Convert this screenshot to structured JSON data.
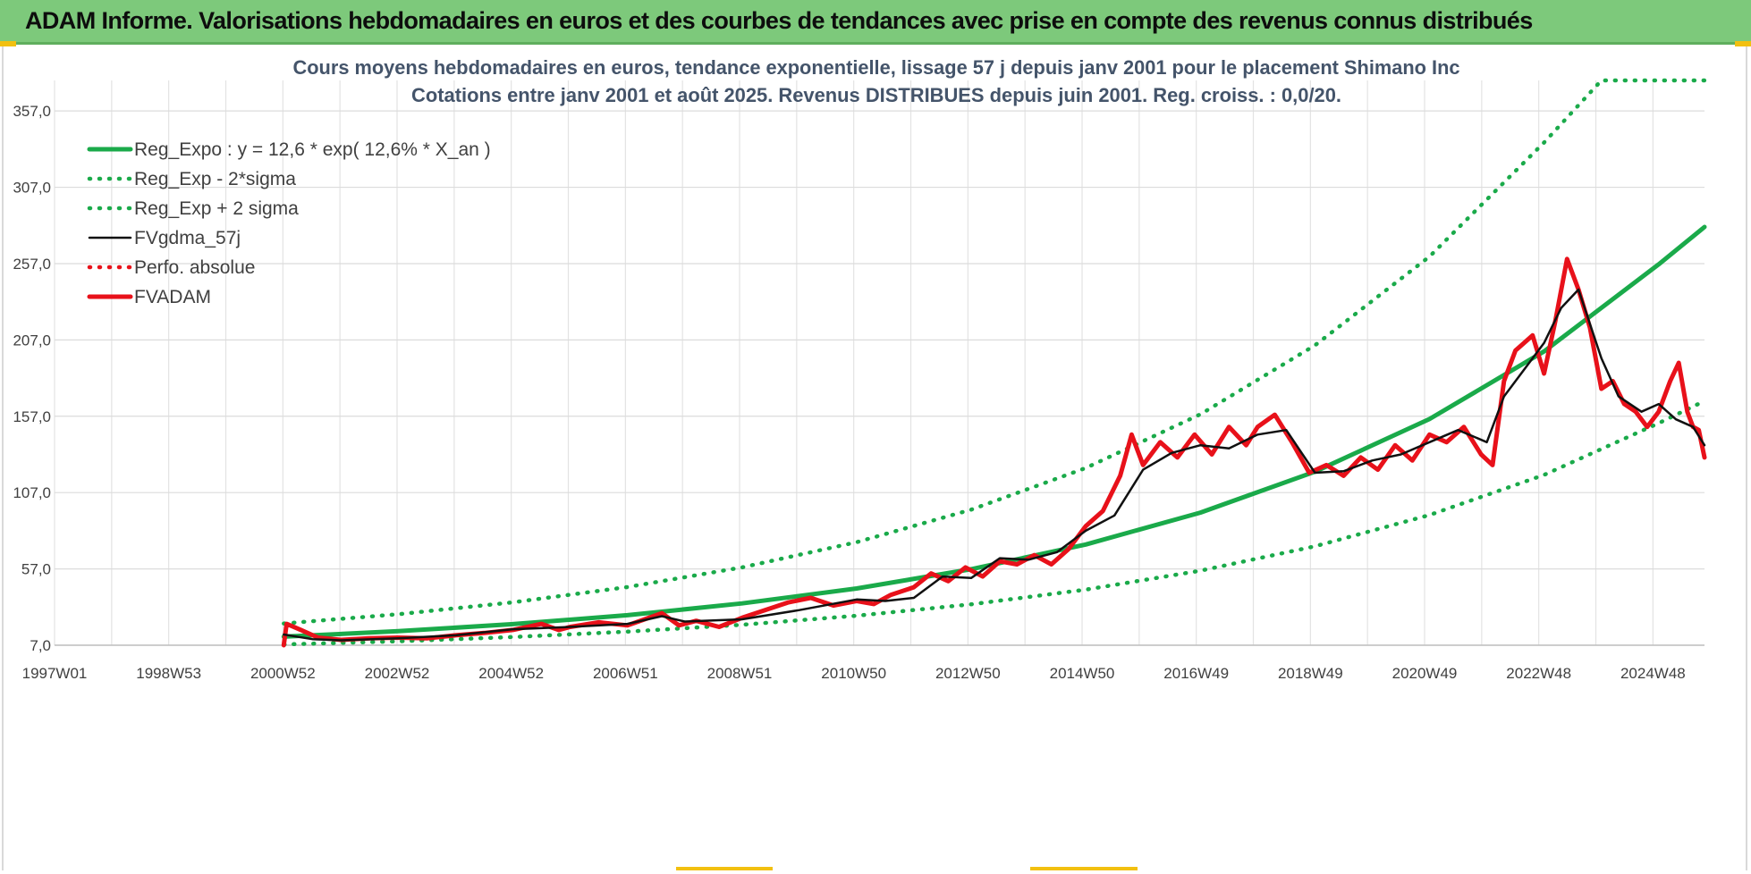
{
  "banner": {
    "title": "ADAM Informe. Valorisations hebdomadaires en euros et des courbes de tendances avec prise en compte des revenus connus distribués"
  },
  "colors": {
    "banner_bg": "#7dc97b",
    "accent": "#f2c010",
    "reg_green": "#1aaa4a",
    "fv_black": "#111111",
    "adam_red": "#e8111a"
  },
  "chart_data": {
    "type": "line",
    "title": "Cours moyens hebdomadaires en euros, tendance exponentielle, lissage 57 j depuis janv 2001 pour le placement Shimano Inc",
    "subtitle": "Cotations entre janv 2001 et août 2025. Revenus DISTRIBUES depuis juin 2001. Reg. croiss. : 0,0/20.",
    "xlabel": "",
    "ylabel": "",
    "x_ticks": [
      "1997W01",
      "1998W53",
      "2000W52",
      "2002W52",
      "2004W52",
      "2006W51",
      "2008W51",
      "2010W50",
      "2012W50",
      "2014W50",
      "2016W49",
      "2018W49",
      "2020W49",
      "2022W48",
      "2024W48"
    ],
    "x_range": [
      1997.0,
      2025.8
    ],
    "y_ticks": [
      "7,0",
      "57,0",
      "107,0",
      "157,0",
      "207,0",
      "257,0",
      "307,0",
      "357,0"
    ],
    "ylim": [
      7,
      377
    ],
    "grid": true,
    "legend_position": "top-left",
    "series": [
      {
        "name": "Reg_Expo : y = 12,6 * exp( 12,6% *  X_an )",
        "style": "solid-thick",
        "color": "#1aaa4a",
        "points": [
          [
            2001.0,
            12.6
          ],
          [
            2003.0,
            16.2
          ],
          [
            2005.0,
            20.8
          ],
          [
            2007.0,
            26.7
          ],
          [
            2009.0,
            34.4
          ],
          [
            2011.0,
            44.2
          ],
          [
            2013.0,
            56.8
          ],
          [
            2015.0,
            73.0
          ],
          [
            2017.0,
            93.9
          ],
          [
            2019.0,
            120.7
          ],
          [
            2021.0,
            155.2
          ],
          [
            2023.0,
            199.5
          ],
          [
            2025.0,
            256.5
          ],
          [
            2025.8,
            281.0
          ]
        ]
      },
      {
        "name": "Reg_Exp - 2*sigma",
        "style": "dotted",
        "color": "#1aaa4a",
        "points": [
          [
            2001.0,
            7.5
          ],
          [
            2003.0,
            9.6
          ],
          [
            2005.0,
            12.4
          ],
          [
            2007.0,
            15.9
          ],
          [
            2009.0,
            20.4
          ],
          [
            2011.0,
            26.3
          ],
          [
            2013.0,
            33.8
          ],
          [
            2015.0,
            43.4
          ],
          [
            2017.0,
            55.8
          ],
          [
            2019.0,
            71.8
          ],
          [
            2021.0,
            92.3
          ],
          [
            2023.0,
            118.6
          ],
          [
            2025.0,
            152.5
          ],
          [
            2025.8,
            167.0
          ]
        ]
      },
      {
        "name": "Reg_Exp + 2 sigma",
        "style": "dotted",
        "color": "#1aaa4a",
        "points": [
          [
            2001.0,
            21.2
          ],
          [
            2003.0,
            27.3
          ],
          [
            2005.0,
            35.1
          ],
          [
            2007.0,
            45.1
          ],
          [
            2009.0,
            58.0
          ],
          [
            2011.0,
            74.5
          ],
          [
            2013.0,
            95.8
          ],
          [
            2015.0,
            123.1
          ],
          [
            2017.0,
            158.3
          ],
          [
            2019.0,
            203.5
          ],
          [
            2021.0,
            261.6
          ],
          [
            2023.0,
            336.3
          ],
          [
            2024.0,
            377.0
          ],
          [
            2025.8,
            377.0
          ]
        ]
      },
      {
        "name": "FVgdma_57j",
        "style": "solid",
        "color": "#111111",
        "points": [
          [
            2001.0,
            14.0
          ],
          [
            2001.5,
            11.0
          ],
          [
            2002.0,
            10.2
          ],
          [
            2003.0,
            11.5
          ],
          [
            2004.0,
            13.5
          ],
          [
            2005.0,
            17.5
          ],
          [
            2006.0,
            19.0
          ],
          [
            2007.0,
            21.0
          ],
          [
            2007.6,
            26.0
          ],
          [
            2008.0,
            22.5
          ],
          [
            2009.0,
            24.0
          ],
          [
            2010.0,
            30.0
          ],
          [
            2011.0,
            37.0
          ],
          [
            2011.5,
            36.0
          ],
          [
            2012.0,
            38.0
          ],
          [
            2012.5,
            52.0
          ],
          [
            2013.0,
            51.0
          ],
          [
            2013.5,
            64.0
          ],
          [
            2014.0,
            63.0
          ],
          [
            2014.5,
            68.0
          ],
          [
            2015.0,
            82.0
          ],
          [
            2015.5,
            92.0
          ],
          [
            2016.0,
            122.0
          ],
          [
            2016.5,
            133.0
          ],
          [
            2017.0,
            138.0
          ],
          [
            2017.5,
            136.0
          ],
          [
            2018.0,
            145.0
          ],
          [
            2018.5,
            148.0
          ],
          [
            2019.0,
            120.0
          ],
          [
            2019.5,
            121.0
          ],
          [
            2020.0,
            128.0
          ],
          [
            2020.5,
            132.0
          ],
          [
            2021.0,
            140.0
          ],
          [
            2021.5,
            148.0
          ],
          [
            2022.0,
            140.0
          ],
          [
            2022.3,
            170.0
          ],
          [
            2022.8,
            195.0
          ],
          [
            2023.0,
            205.0
          ],
          [
            2023.3,
            228.0
          ],
          [
            2023.6,
            240.0
          ],
          [
            2024.0,
            195.0
          ],
          [
            2024.3,
            170.0
          ],
          [
            2024.7,
            160.0
          ],
          [
            2025.0,
            165.0
          ],
          [
            2025.3,
            155.0
          ],
          [
            2025.6,
            150.0
          ],
          [
            2025.8,
            138.0
          ]
        ]
      },
      {
        "name": "Perfo. absolue",
        "style": "dotted",
        "color": "#e8111a",
        "points": []
      },
      {
        "name": "FVADAM",
        "style": "solid-thick",
        "color": "#e8111a",
        "points": [
          [
            2001.0,
            7.0
          ],
          [
            2001.05,
            21.0
          ],
          [
            2001.3,
            17.0
          ],
          [
            2001.6,
            12.0
          ],
          [
            2002.0,
            10.5
          ],
          [
            2002.5,
            11.5
          ],
          [
            2003.0,
            12.0
          ],
          [
            2003.5,
            11.5
          ],
          [
            2004.0,
            13.5
          ],
          [
            2004.5,
            15.0
          ],
          [
            2005.0,
            17.0
          ],
          [
            2005.5,
            21.0
          ],
          [
            2005.8,
            17.0
          ],
          [
            2006.0,
            19.0
          ],
          [
            2006.5,
            22.0
          ],
          [
            2007.0,
            20.0
          ],
          [
            2007.3,
            24.0
          ],
          [
            2007.6,
            28.0
          ],
          [
            2007.9,
            20.0
          ],
          [
            2008.2,
            23.0
          ],
          [
            2008.6,
            19.0
          ],
          [
            2009.0,
            25.0
          ],
          [
            2009.4,
            30.0
          ],
          [
            2009.8,
            35.0
          ],
          [
            2010.2,
            38.0
          ],
          [
            2010.6,
            33.0
          ],
          [
            2011.0,
            36.0
          ],
          [
            2011.3,
            34.0
          ],
          [
            2011.6,
            40.0
          ],
          [
            2012.0,
            45.0
          ],
          [
            2012.3,
            54.0
          ],
          [
            2012.6,
            49.0
          ],
          [
            2012.9,
            58.0
          ],
          [
            2013.2,
            52.0
          ],
          [
            2013.5,
            62.0
          ],
          [
            2013.8,
            60.0
          ],
          [
            2014.1,
            66.0
          ],
          [
            2014.4,
            60.0
          ],
          [
            2014.7,
            70.0
          ],
          [
            2015.0,
            85.0
          ],
          [
            2015.3,
            95.0
          ],
          [
            2015.6,
            118.0
          ],
          [
            2015.8,
            145.0
          ],
          [
            2016.0,
            125.0
          ],
          [
            2016.3,
            140.0
          ],
          [
            2016.6,
            130.0
          ],
          [
            2016.9,
            145.0
          ],
          [
            2017.2,
            132.0
          ],
          [
            2017.5,
            150.0
          ],
          [
            2017.8,
            138.0
          ],
          [
            2018.0,
            150.0
          ],
          [
            2018.3,
            158.0
          ],
          [
            2018.6,
            140.0
          ],
          [
            2018.9,
            120.0
          ],
          [
            2019.2,
            125.0
          ],
          [
            2019.5,
            118.0
          ],
          [
            2019.8,
            130.0
          ],
          [
            2020.1,
            122.0
          ],
          [
            2020.4,
            138.0
          ],
          [
            2020.7,
            128.0
          ],
          [
            2021.0,
            145.0
          ],
          [
            2021.3,
            140.0
          ],
          [
            2021.6,
            150.0
          ],
          [
            2021.9,
            132.0
          ],
          [
            2022.1,
            125.0
          ],
          [
            2022.3,
            180.0
          ],
          [
            2022.5,
            200.0
          ],
          [
            2022.8,
            210.0
          ],
          [
            2023.0,
            185.0
          ],
          [
            2023.2,
            220.0
          ],
          [
            2023.4,
            260.0
          ],
          [
            2023.6,
            240.0
          ],
          [
            2023.8,
            215.0
          ],
          [
            2024.0,
            175.0
          ],
          [
            2024.2,
            180.0
          ],
          [
            2024.4,
            165.0
          ],
          [
            2024.6,
            160.0
          ],
          [
            2024.8,
            150.0
          ],
          [
            2025.0,
            160.0
          ],
          [
            2025.2,
            180.0
          ],
          [
            2025.35,
            192.0
          ],
          [
            2025.5,
            160.0
          ],
          [
            2025.6,
            150.0
          ],
          [
            2025.7,
            148.0
          ],
          [
            2025.8,
            130.0
          ]
        ]
      }
    ]
  }
}
